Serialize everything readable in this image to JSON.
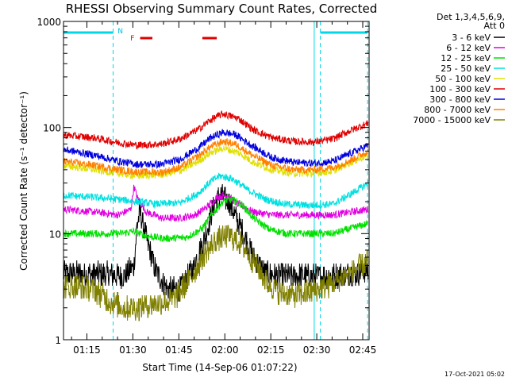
{
  "chart_data": {
    "type": "line",
    "title": "RHESSI Observing Summary Count Rates, Corrected",
    "xlabel": "Start Time (14-Sep-06 01:07:22)",
    "ylabel": "Corrected Count Rate (s⁻¹ detector⁻¹)",
    "x_unit": "minutes",
    "x_start": "01:07:22",
    "xlim": [
      0,
      99.7
    ],
    "ylim": [
      1,
      1000
    ],
    "y_scale": "log",
    "x_ticks": [
      {
        "label": "01:15",
        "minute": 7.63
      },
      {
        "label": "01:30",
        "minute": 22.63
      },
      {
        "label": "01:45",
        "minute": 37.63
      },
      {
        "label": "02:00",
        "minute": 52.63
      },
      {
        "label": "02:15",
        "minute": 67.63
      },
      {
        "label": "02:30",
        "minute": 82.63
      },
      {
        "label": "02:45",
        "minute": 97.63
      }
    ],
    "y_ticks": [
      {
        "label": "1",
        "value": 1
      },
      {
        "label": "10",
        "value": 10
      },
      {
        "label": "100",
        "value": 100
      },
      {
        "label": "1000",
        "value": 1000
      }
    ],
    "legend_header": [
      "Det 1,3,4,5,6,9,",
      "Att 0"
    ],
    "legend_position": "right",
    "series": [
      {
        "name": "3 - 6 keV",
        "color": "#000000",
        "points": [
          [
            0,
            4.2
          ],
          [
            10,
            4.2
          ],
          [
            20,
            4.0
          ],
          [
            23,
            5
          ],
          [
            24,
            12
          ],
          [
            25,
            16
          ],
          [
            27,
            9
          ],
          [
            30,
            4.5
          ],
          [
            34,
            3.0
          ],
          [
            38,
            3.0
          ],
          [
            42,
            4.5
          ],
          [
            46,
            9
          ],
          [
            49,
            18
          ],
          [
            51,
            23
          ],
          [
            54,
            20
          ],
          [
            58,
            11
          ],
          [
            62,
            6
          ],
          [
            66,
            4.2
          ],
          [
            72,
            4.0
          ],
          [
            80,
            4.0
          ],
          [
            88,
            4.0
          ],
          [
            95,
            4.2
          ],
          [
            99.5,
            4.5
          ]
        ]
      },
      {
        "name": "6 - 12 keV",
        "color": "#e000e0",
        "points": [
          [
            0,
            17
          ],
          [
            10,
            16
          ],
          [
            18,
            15
          ],
          [
            22,
            17
          ],
          [
            23,
            28
          ],
          [
            24,
            22
          ],
          [
            27,
            16
          ],
          [
            32,
            14
          ],
          [
            38,
            14
          ],
          [
            43,
            15
          ],
          [
            47,
            18
          ],
          [
            50,
            22
          ],
          [
            53,
            23
          ],
          [
            57,
            19
          ],
          [
            62,
            16
          ],
          [
            68,
            15
          ],
          [
            76,
            15
          ],
          [
            82,
            15
          ],
          [
            88,
            15
          ],
          [
            94,
            16
          ],
          [
            99.5,
            17
          ]
        ]
      },
      {
        "name": "12 - 25 keV",
        "color": "#00e000",
        "points": [
          [
            0,
            10
          ],
          [
            10,
            10
          ],
          [
            18,
            10
          ],
          [
            23,
            10.5
          ],
          [
            27,
            9.5
          ],
          [
            33,
            9
          ],
          [
            40,
            9.2
          ],
          [
            45,
            11
          ],
          [
            49,
            16
          ],
          [
            52,
            20
          ],
          [
            55,
            21
          ],
          [
            58,
            19
          ],
          [
            62,
            14
          ],
          [
            67,
            11
          ],
          [
            73,
            10
          ],
          [
            80,
            10
          ],
          [
            88,
            10
          ],
          [
            93,
            11
          ],
          [
            99.5,
            12.5
          ]
        ]
      },
      {
        "name": "25 - 50 keV",
        "color": "#00e0e0",
        "points": [
          [
            0,
            23
          ],
          [
            10,
            22
          ],
          [
            18,
            21
          ],
          [
            24,
            20
          ],
          [
            30,
            19
          ],
          [
            38,
            19.5
          ],
          [
            44,
            24
          ],
          [
            48,
            31
          ],
          [
            51,
            35
          ],
          [
            55,
            33
          ],
          [
            60,
            26
          ],
          [
            66,
            21
          ],
          [
            72,
            19
          ],
          [
            80,
            18.5
          ],
          [
            88,
            19
          ],
          [
            93,
            23
          ],
          [
            99.5,
            30
          ]
        ]
      },
      {
        "name": "50 - 100 keV",
        "color": "#e0e000",
        "points": [
          [
            0,
            44
          ],
          [
            10,
            40
          ],
          [
            18,
            37
          ],
          [
            24,
            35
          ],
          [
            32,
            36
          ],
          [
            38,
            39
          ],
          [
            44,
            48
          ],
          [
            48,
            58
          ],
          [
            52,
            64
          ],
          [
            57,
            58
          ],
          [
            62,
            47
          ],
          [
            68,
            40
          ],
          [
            75,
            37
          ],
          [
            82,
            37
          ],
          [
            88,
            39
          ],
          [
            93,
            46
          ],
          [
            99.5,
            55
          ]
        ]
      },
      {
        "name": "100 - 300 keV",
        "color": "#e00000",
        "points": [
          [
            0,
            85
          ],
          [
            10,
            80
          ],
          [
            18,
            72
          ],
          [
            24,
            68
          ],
          [
            32,
            70
          ],
          [
            38,
            78
          ],
          [
            44,
            96
          ],
          [
            48,
            118
          ],
          [
            52,
            135
          ],
          [
            57,
            122
          ],
          [
            62,
            95
          ],
          [
            68,
            80
          ],
          [
            75,
            74
          ],
          [
            82,
            73
          ],
          [
            88,
            78
          ],
          [
            93,
            92
          ],
          [
            99.5,
            110
          ]
        ]
      },
      {
        "name": "300 - 800 keV",
        "color": "#0000e0",
        "points": [
          [
            0,
            62
          ],
          [
            10,
            55
          ],
          [
            18,
            48
          ],
          [
            24,
            45
          ],
          [
            32,
            45
          ],
          [
            38,
            50
          ],
          [
            44,
            64
          ],
          [
            48,
            80
          ],
          [
            52,
            90
          ],
          [
            56,
            86
          ],
          [
            62,
            66
          ],
          [
            68,
            52
          ],
          [
            75,
            47
          ],
          [
            82,
            46
          ],
          [
            88,
            48
          ],
          [
            93,
            56
          ],
          [
            99.5,
            68
          ]
        ]
      },
      {
        "name": "800 - 7000 keV",
        "color": "#ff8000",
        "points": [
          [
            0,
            48
          ],
          [
            10,
            44
          ],
          [
            18,
            40
          ],
          [
            24,
            38
          ],
          [
            32,
            38
          ],
          [
            38,
            42
          ],
          [
            44,
            54
          ],
          [
            48,
            66
          ],
          [
            52,
            74
          ],
          [
            56,
            70
          ],
          [
            62,
            54
          ],
          [
            68,
            44
          ],
          [
            75,
            40
          ],
          [
            82,
            40
          ],
          [
            88,
            42
          ],
          [
            93,
            48
          ],
          [
            99.5,
            60
          ]
        ]
      },
      {
        "name": "7000 - 15000 keV",
        "color": "#808000",
        "points": [
          [
            0,
            3.2
          ],
          [
            10,
            3.0
          ],
          [
            16,
            2.2
          ],
          [
            20,
            2.0
          ],
          [
            24,
            2.0
          ],
          [
            30,
            2.2
          ],
          [
            36,
            2.4
          ],
          [
            42,
            4.0
          ],
          [
            46,
            6.5
          ],
          [
            50,
            8.8
          ],
          [
            54,
            9.5
          ],
          [
            58,
            8
          ],
          [
            62,
            5.5
          ],
          [
            66,
            3.6
          ],
          [
            70,
            2.8
          ],
          [
            76,
            2.6
          ],
          [
            82,
            2.9
          ],
          [
            88,
            3.4
          ],
          [
            94,
            4.3
          ],
          [
            99.5,
            5.5
          ]
        ]
      }
    ],
    "annotations": {
      "fast_rate_bars": [
        [
          0,
          16.2
        ],
        [
          83.8,
          99.2
        ]
      ],
      "dashed_verticals": [
        16.2,
        83.8,
        99.2
      ],
      "solid_verticals": [
        0,
        81.8
      ],
      "flare_bars": [
        [
          25,
          29
        ],
        [
          45.3,
          50
        ]
      ],
      "night_label": "N",
      "flare_label": "F"
    },
    "grid": false
  },
  "footer": {
    "timestamp": "17-Oct-2021 05:02"
  }
}
